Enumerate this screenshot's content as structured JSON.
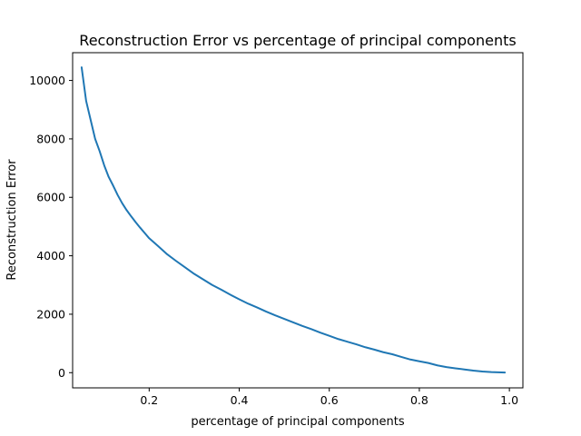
{
  "chart_data": {
    "type": "line",
    "title": "Reconstruction Error vs percentage of principal components",
    "xlabel": "percentage of principal components",
    "ylabel": "Reconstruction Error",
    "xlim": [
      0.03,
      1.03
    ],
    "ylim": [
      -520,
      10950
    ],
    "x_ticks": [
      0.2,
      0.4,
      0.6,
      0.8,
      1.0
    ],
    "x_tick_labels": [
      "0.2",
      "0.4",
      "0.6",
      "0.8",
      "1.0"
    ],
    "y_ticks": [
      0,
      2000,
      4000,
      6000,
      8000,
      10000
    ],
    "y_tick_labels": [
      "0",
      "2000",
      "4000",
      "6000",
      "8000",
      "10000"
    ],
    "grid": false,
    "line_color": "#1f77b4",
    "series": [
      {
        "x": [
          0.05,
          0.06,
          0.07,
          0.08,
          0.09,
          0.1,
          0.11,
          0.12,
          0.13,
          0.14,
          0.15,
          0.16,
          0.17,
          0.18,
          0.19,
          0.2,
          0.22,
          0.24,
          0.26,
          0.28,
          0.3,
          0.32,
          0.34,
          0.36,
          0.38,
          0.4,
          0.42,
          0.44,
          0.46,
          0.48,
          0.5,
          0.52,
          0.54,
          0.56,
          0.58,
          0.6,
          0.62,
          0.64,
          0.66,
          0.68,
          0.7,
          0.72,
          0.74,
          0.76,
          0.78,
          0.8,
          0.82,
          0.84,
          0.86,
          0.88,
          0.9,
          0.92,
          0.94,
          0.96,
          0.99
        ],
        "y": [
          10450,
          9300,
          8650,
          8000,
          7580,
          7100,
          6700,
          6400,
          6080,
          5800,
          5560,
          5350,
          5150,
          4960,
          4780,
          4600,
          4330,
          4050,
          3820,
          3600,
          3380,
          3190,
          3000,
          2840,
          2670,
          2510,
          2360,
          2230,
          2090,
          1960,
          1840,
          1720,
          1600,
          1490,
          1370,
          1260,
          1150,
          1060,
          970,
          870,
          790,
          700,
          630,
          540,
          450,
          390,
          330,
          250,
          190,
          150,
          110,
          70,
          40,
          20,
          5
        ]
      }
    ]
  }
}
